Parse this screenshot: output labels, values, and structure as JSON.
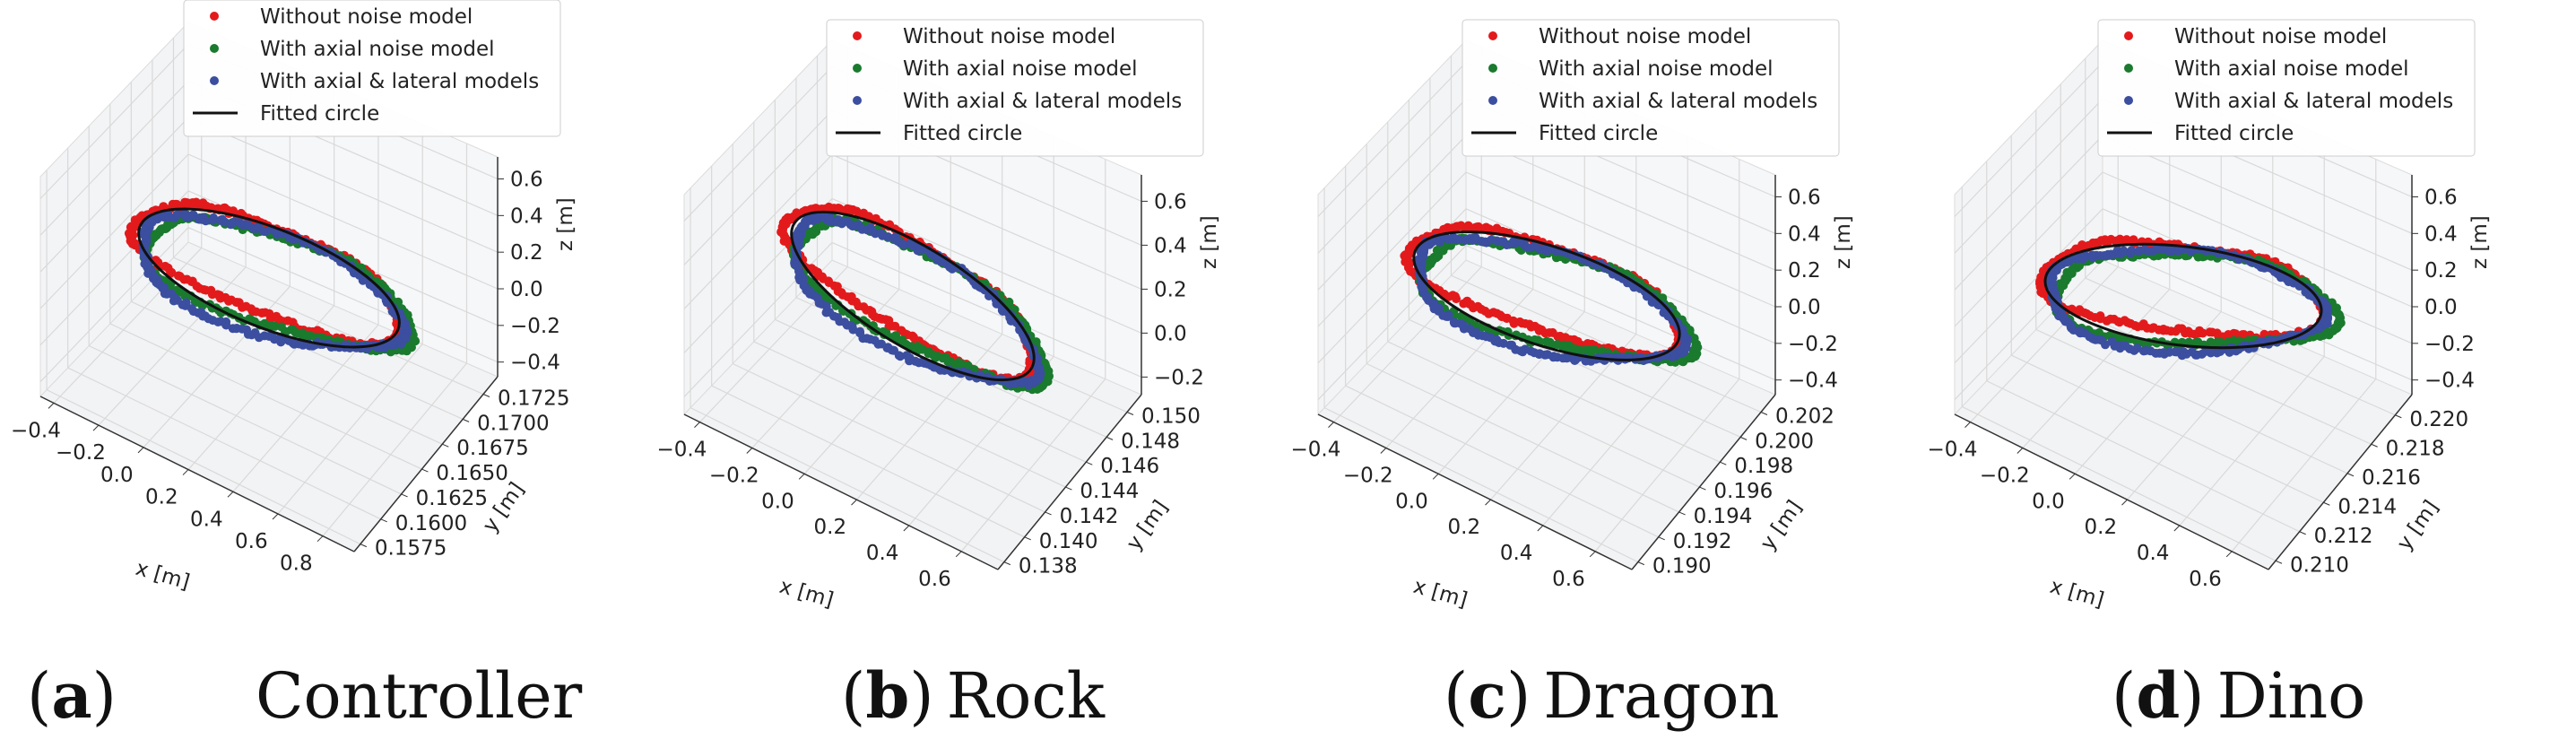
{
  "colors": {
    "without": "#e31a1c",
    "axial": "#1a7a2e",
    "lateral": "#3b4ea0",
    "circle": "#111111"
  },
  "legend": {
    "without": "Without noise model",
    "axial": "With axial noise model",
    "lateral": "With axial & lateral models",
    "circle": "Fitted circle"
  },
  "chart_data": [
    {
      "type": "scatter",
      "panel": "(a)",
      "caption": "Controller",
      "xlabel": "x [m]",
      "ylabel": "y [m]",
      "zlabel": "z [m]",
      "xticks": [
        "−0.4",
        "−0.2",
        "0.0",
        "0.2",
        "0.4",
        "0.6",
        "0.8"
      ],
      "yticks": [
        "0.1575",
        "0.1600",
        "0.1625",
        "0.1650",
        "0.1675",
        "0.1700",
        "0.1725"
      ],
      "zticks": [
        "−0.4",
        "−0.2",
        "0.0",
        "0.2",
        "0.4",
        "0.6"
      ],
      "xlim": [
        -0.5,
        0.85
      ],
      "ylim": [
        0.1565,
        0.1735
      ],
      "zlim": [
        -0.45,
        0.65
      ],
      "series": [
        {
          "name": "Without noise model",
          "color_key": "without",
          "description": "trajectory loop around fitted circle"
        },
        {
          "name": "With axial noise model",
          "color_key": "axial"
        },
        {
          "name": "With axial & lateral models",
          "color_key": "lateral"
        },
        {
          "name": "Fitted circle",
          "color_key": "circle",
          "shape": "ellipse"
        }
      ]
    },
    {
      "type": "scatter",
      "panel": "(b)",
      "caption": "Rock",
      "xlabel": "x [m]",
      "ylabel": "y [m]",
      "zlabel": "z [m]",
      "xticks": [
        "−0.4",
        "−0.2",
        "0.0",
        "0.2",
        "0.4",
        "0.6"
      ],
      "yticks": [
        "0.138",
        "0.140",
        "0.142",
        "0.144",
        "0.146",
        "0.148",
        "0.150"
      ],
      "zticks": [
        "−0.2",
        "0.0",
        "0.2",
        "0.4",
        "0.6"
      ],
      "xlim": [
        -0.5,
        0.7
      ],
      "ylim": [
        0.137,
        0.151
      ],
      "zlim": [
        -0.35,
        0.65
      ],
      "series": [
        {
          "name": "Without noise model",
          "color_key": "without"
        },
        {
          "name": "With axial noise model",
          "color_key": "axial"
        },
        {
          "name": "With axial & lateral models",
          "color_key": "lateral"
        },
        {
          "name": "Fitted circle",
          "color_key": "circle",
          "shape": "ellipse"
        }
      ]
    },
    {
      "type": "scatter",
      "panel": "(c)",
      "caption": "Dragon",
      "xlabel": "x [m]",
      "ylabel": "y [m]",
      "zlabel": "z [m]",
      "xticks": [
        "−0.4",
        "−0.2",
        "0.0",
        "0.2",
        "0.4",
        "0.6"
      ],
      "yticks": [
        "0.190",
        "0.192",
        "0.194",
        "0.196",
        "0.198",
        "0.200",
        "0.202"
      ],
      "zticks": [
        "−0.4",
        "−0.2",
        "0.0",
        "0.2",
        "0.4",
        "0.6"
      ],
      "xlim": [
        -0.5,
        0.7
      ],
      "ylim": [
        0.189,
        0.203
      ],
      "zlim": [
        -0.45,
        0.65
      ],
      "series": [
        {
          "name": "Without noise model",
          "color_key": "without"
        },
        {
          "name": "With axial noise model",
          "color_key": "axial"
        },
        {
          "name": "With axial & lateral models",
          "color_key": "lateral"
        },
        {
          "name": "Fitted circle",
          "color_key": "circle",
          "shape": "ellipse"
        }
      ]
    },
    {
      "type": "scatter",
      "panel": "(d)",
      "caption": "Dino",
      "xlabel": "x [m]",
      "ylabel": "y [m]",
      "zlabel": "z [m]",
      "xticks": [
        "−0.4",
        "−0.2",
        "0.0",
        "0.2",
        "0.4",
        "0.6"
      ],
      "yticks": [
        "0.210",
        "0.212",
        "0.214",
        "0.216",
        "0.218",
        "0.220"
      ],
      "zticks": [
        "−0.4",
        "−0.2",
        "0.0",
        "0.2",
        "0.4",
        "0.6"
      ],
      "xlim": [
        -0.5,
        0.7
      ],
      "ylim": [
        0.209,
        0.221
      ],
      "zlim": [
        -0.45,
        0.65
      ],
      "series": [
        {
          "name": "Without noise model",
          "color_key": "without"
        },
        {
          "name": "With axial noise model",
          "color_key": "axial"
        },
        {
          "name": "With axial & lateral models",
          "color_key": "lateral"
        },
        {
          "name": "Fitted circle",
          "color_key": "circle",
          "shape": "ellipse"
        }
      ]
    }
  ]
}
